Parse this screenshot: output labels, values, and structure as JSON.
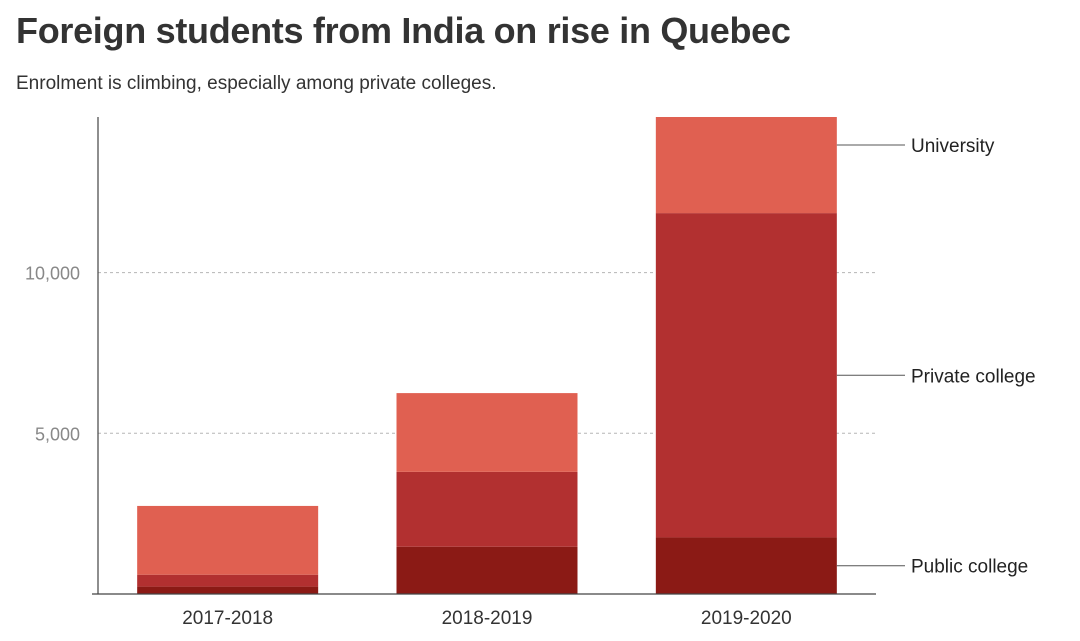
{
  "header": {
    "title": "Foreign students from India on rise in Quebec",
    "subtitle": "Enrolment is climbing, especially among private colleges."
  },
  "chart_data": {
    "type": "bar",
    "stacked": true,
    "categories": [
      "2017-2018",
      "2018-2019",
      "2019-2020"
    ],
    "series": [
      {
        "name": "Public college",
        "values": [
          230,
          1470,
          1760
        ],
        "color": "#8b1a15"
      },
      {
        "name": "Private college",
        "values": [
          370,
          2330,
          10090
        ],
        "color": "#b23030"
      },
      {
        "name": "University",
        "values": [
          2140,
          2450,
          2990
        ],
        "color": "#e06051"
      }
    ],
    "title": "Foreign students from India on rise in Quebec",
    "subtitle": "Enrolment is climbing, especially among private colleges.",
    "xlabel": "",
    "ylabel": "",
    "ylim": [
      0,
      14840
    ],
    "yticks": [
      5000,
      10000
    ],
    "ytick_labels": [
      "5,000",
      "10,000"
    ],
    "grid": "dashed horizontal at y ticks",
    "legend": "direct labels at right of last bar"
  }
}
